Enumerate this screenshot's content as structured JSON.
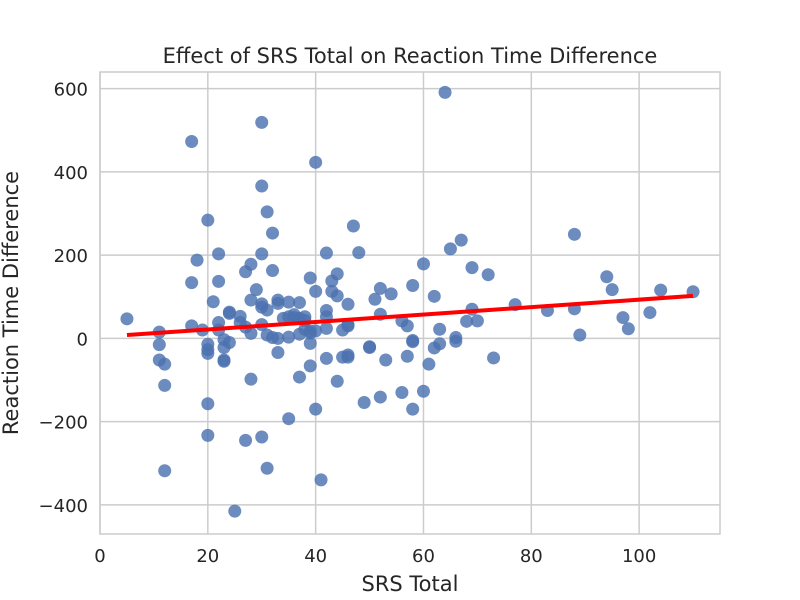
{
  "chart_data": {
    "type": "scatter",
    "title": "Effect of SRS Total on Reaction Time Difference",
    "xlabel": "SRS Total",
    "ylabel": "Reaction Time Difference",
    "xlim": [
      0,
      115
    ],
    "ylim": [
      -470,
      640
    ],
    "xticks": [
      0,
      20,
      40,
      60,
      80,
      100
    ],
    "yticks": [
      -400,
      -200,
      0,
      200,
      400,
      600
    ],
    "grid": true,
    "colors": {
      "points": "#4c72b0",
      "fit_line": "#ff0000",
      "grid": "#cccccc",
      "frame": "#cccccc"
    },
    "fit_line": {
      "x": [
        5,
        110
      ],
      "y": [
        8,
        102
      ]
    },
    "points": [
      [
        5,
        47
      ],
      [
        11,
        15
      ],
      [
        11,
        -15
      ],
      [
        11,
        -52
      ],
      [
        12,
        -62
      ],
      [
        12,
        -113
      ],
      [
        12,
        -318
      ],
      [
        17,
        473
      ],
      [
        17,
        134
      ],
      [
        17,
        30
      ],
      [
        18,
        188
      ],
      [
        19,
        20
      ],
      [
        20,
        284
      ],
      [
        20,
        -14
      ],
      [
        20,
        -27
      ],
      [
        20,
        -36
      ],
      [
        20,
        -157
      ],
      [
        20,
        -233
      ],
      [
        21,
        88
      ],
      [
        22,
        203
      ],
      [
        22,
        137
      ],
      [
        22,
        38
      ],
      [
        22,
        20
      ],
      [
        23,
        -3
      ],
      [
        23,
        -22
      ],
      [
        23,
        -52
      ],
      [
        23,
        -55
      ],
      [
        24,
        63
      ],
      [
        24,
        60
      ],
      [
        24,
        -10
      ],
      [
        25,
        -415
      ],
      [
        26,
        53
      ],
      [
        26,
        38
      ],
      [
        27,
        160
      ],
      [
        27,
        27
      ],
      [
        27,
        -245
      ],
      [
        28,
        178
      ],
      [
        28,
        92
      ],
      [
        28,
        12
      ],
      [
        28,
        -98
      ],
      [
        29,
        117
      ],
      [
        30,
        519
      ],
      [
        30,
        366
      ],
      [
        30,
        203
      ],
      [
        30,
        83
      ],
      [
        30,
        75
      ],
      [
        30,
        33
      ],
      [
        30,
        -237
      ],
      [
        31,
        304
      ],
      [
        31,
        68
      ],
      [
        31,
        8
      ],
      [
        31,
        -312
      ],
      [
        32,
        253
      ],
      [
        32,
        163
      ],
      [
        32,
        2
      ],
      [
        33,
        92
      ],
      [
        33,
        84
      ],
      [
        33,
        0
      ],
      [
        33,
        -34
      ],
      [
        34,
        48
      ],
      [
        35,
        87
      ],
      [
        35,
        52
      ],
      [
        35,
        3
      ],
      [
        35,
        -193
      ],
      [
        36,
        57
      ],
      [
        36,
        50
      ],
      [
        37,
        86
      ],
      [
        37,
        48
      ],
      [
        37,
        10
      ],
      [
        37,
        -93
      ],
      [
        38,
        52
      ],
      [
        38,
        43
      ],
      [
        38,
        22
      ],
      [
        39,
        145
      ],
      [
        39,
        17
      ],
      [
        39,
        13
      ],
      [
        39,
        -12
      ],
      [
        39,
        -66
      ],
      [
        40,
        423
      ],
      [
        40,
        113
      ],
      [
        40,
        18
      ],
      [
        40,
        -170
      ],
      [
        41,
        -340
      ],
      [
        42,
        205
      ],
      [
        42,
        67
      ],
      [
        42,
        52
      ],
      [
        42,
        24
      ],
      [
        42,
        -48
      ],
      [
        43,
        138
      ],
      [
        43,
        113
      ],
      [
        44,
        155
      ],
      [
        44,
        102
      ],
      [
        44,
        -103
      ],
      [
        45,
        20
      ],
      [
        45,
        -45
      ],
      [
        46,
        82
      ],
      [
        46,
        33
      ],
      [
        46,
        30
      ],
      [
        46,
        -40
      ],
      [
        46,
        -45
      ],
      [
        47,
        270
      ],
      [
        48,
        206
      ],
      [
        49,
        -154
      ],
      [
        50,
        -20
      ],
      [
        50,
        -22
      ],
      [
        51,
        94
      ],
      [
        52,
        120
      ],
      [
        52,
        58
      ],
      [
        52,
        -141
      ],
      [
        53,
        -52
      ],
      [
        54,
        107
      ],
      [
        56,
        42
      ],
      [
        56,
        -130
      ],
      [
        57,
        30
      ],
      [
        57,
        -43
      ],
      [
        58,
        127
      ],
      [
        58,
        -5
      ],
      [
        58,
        -8
      ],
      [
        58,
        -170
      ],
      [
        60,
        179
      ],
      [
        60,
        -127
      ],
      [
        61,
        -62
      ],
      [
        62,
        101
      ],
      [
        62,
        -23
      ],
      [
        63,
        22
      ],
      [
        63,
        -13
      ],
      [
        65,
        215
      ],
      [
        66,
        2
      ],
      [
        66,
        -7
      ],
      [
        67,
        236
      ],
      [
        68,
        41
      ],
      [
        69,
        170
      ],
      [
        69,
        70
      ],
      [
        70,
        42
      ],
      [
        72,
        153
      ],
      [
        73,
        -47
      ],
      [
        77,
        81
      ],
      [
        83,
        67
      ],
      [
        88,
        250
      ],
      [
        88,
        71
      ],
      [
        89,
        8
      ],
      [
        94,
        148
      ],
      [
        95,
        117
      ],
      [
        97,
        50
      ],
      [
        98,
        23
      ],
      [
        102,
        62
      ],
      [
        104,
        116
      ],
      [
        110,
        112
      ],
      [
        64,
        591
      ]
    ]
  }
}
